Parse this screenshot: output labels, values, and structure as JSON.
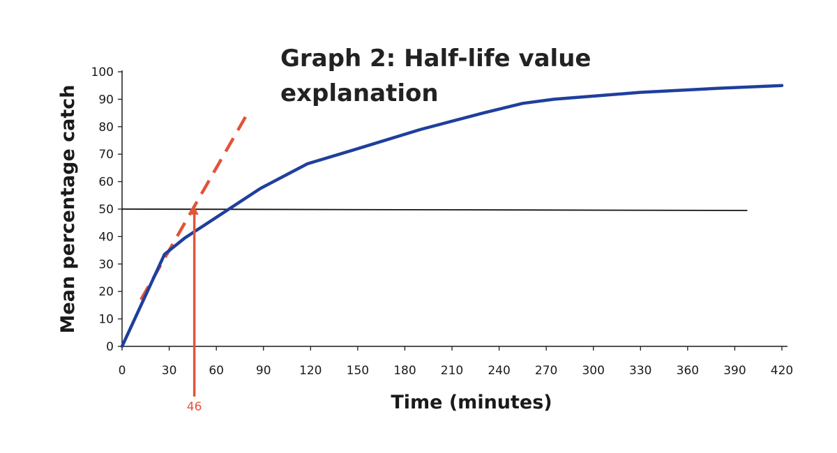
{
  "chart_data": {
    "type": "line",
    "title_lines": [
      "Graph 2: Half-life value",
      "explanation"
    ],
    "xlabel": "Time (minutes)",
    "ylabel": "Mean percentage catch",
    "xlim": [
      0,
      420
    ],
    "ylim": [
      0,
      100
    ],
    "x_ticks": [
      0,
      30,
      60,
      90,
      120,
      150,
      180,
      210,
      240,
      270,
      300,
      330,
      360,
      390,
      420
    ],
    "y_ticks": [
      0,
      10,
      20,
      30,
      40,
      50,
      60,
      70,
      80,
      90,
      100
    ],
    "grid": false,
    "series": [
      {
        "color": "#1f3f9c",
        "points": [
          [
            0,
            0
          ],
          [
            27,
            33.5
          ],
          [
            40,
            39.5
          ],
          [
            60,
            47
          ],
          [
            88,
            57.5
          ],
          [
            118,
            66.5
          ],
          [
            150,
            72
          ],
          [
            190,
            79
          ],
          [
            230,
            85
          ],
          [
            255,
            88.5
          ],
          [
            275,
            90
          ],
          [
            330,
            92.5
          ],
          [
            380,
            94
          ],
          [
            420,
            95
          ]
        ]
      }
    ],
    "tangent_line": {
      "color": "#e2533a",
      "dashed": true,
      "points": [
        [
          12,
          17
        ],
        [
          80,
          85
        ]
      ]
    },
    "reference_line": {
      "color": "#111111",
      "y": 50,
      "x_start": 0,
      "x_end": 398
    },
    "annotation": {
      "color": "#e2533a",
      "x": 46,
      "y_top": 51,
      "label": "46"
    }
  }
}
